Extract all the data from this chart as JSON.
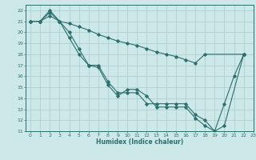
{
  "xlabel": "Humidex (Indice chaleur)",
  "xlim": [
    -0.5,
    23
  ],
  "ylim": [
    11,
    22.5
  ],
  "yticks": [
    11,
    12,
    13,
    14,
    15,
    16,
    17,
    18,
    19,
    20,
    21,
    22
  ],
  "xticks": [
    0,
    1,
    2,
    3,
    4,
    5,
    6,
    7,
    8,
    9,
    10,
    11,
    12,
    13,
    14,
    15,
    16,
    17,
    18,
    19,
    20,
    21,
    22,
    23
  ],
  "bg_color": "#cce8e8",
  "grid_color": "#aacccc",
  "line_color": "#2d6e6e",
  "lines": [
    {
      "x": [
        0,
        1,
        2,
        3,
        4,
        5,
        6,
        7,
        8,
        9,
        10,
        11,
        12,
        13,
        14,
        15,
        16,
        17,
        18,
        22
      ],
      "y": [
        21,
        21,
        21.5,
        21,
        20.8,
        20.5,
        20.2,
        19.8,
        19.5,
        19.2,
        19.0,
        18.8,
        18.5,
        18.2,
        18.0,
        17.8,
        17.5,
        17.2,
        18.0,
        18
      ]
    },
    {
      "x": [
        0,
        1,
        2,
        3,
        4,
        5,
        6,
        7,
        8,
        9,
        10,
        11,
        12,
        13,
        14,
        15,
        16,
        17,
        18,
        19,
        20,
        21,
        22
      ],
      "y": [
        21,
        21,
        22,
        21,
        20,
        18.5,
        17,
        17,
        15.5,
        14.5,
        14.5,
        14.5,
        13.5,
        13.5,
        13.5,
        13.5,
        13.5,
        12.5,
        12,
        11,
        13.5,
        16,
        18
      ]
    },
    {
      "x": [
        0,
        1,
        2,
        3,
        4,
        5,
        6,
        7,
        8,
        9,
        10,
        11,
        12,
        13,
        14,
        15,
        16,
        17,
        18,
        19,
        20,
        22
      ],
      "y": [
        21,
        21,
        21.8,
        21,
        19.5,
        18,
        17,
        16.8,
        15.2,
        14.2,
        14.8,
        14.8,
        14.2,
        13.2,
        13.2,
        13.2,
        13.2,
        12.2,
        11.5,
        11,
        11.5,
        18
      ]
    }
  ]
}
